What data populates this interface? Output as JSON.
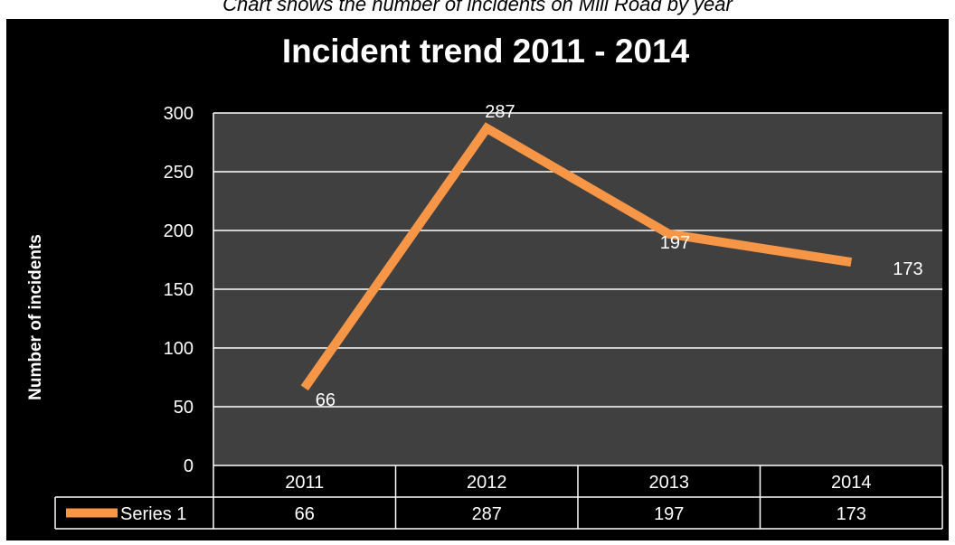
{
  "caption": "Chart shows the number of incidents on Mill Road by year",
  "colors": {
    "background": "#000000",
    "plot_area": "#404040",
    "gridline": "#ffffff",
    "series_line": "#f79646",
    "text": "#ffffff"
  },
  "chart_data": {
    "type": "line",
    "title": "Incident trend 2011 - 2014",
    "xlabel": "",
    "ylabel": "Number of incidents",
    "categories": [
      "2011",
      "2012",
      "2013",
      "2014"
    ],
    "series": [
      {
        "name": "Series 1",
        "values": [
          66,
          287,
          197,
          173
        ],
        "color": "#f79646"
      }
    ],
    "ylim": [
      0,
      300
    ],
    "yticks": [
      0,
      50,
      100,
      150,
      200,
      250,
      300
    ],
    "grid": true,
    "data_labels": true,
    "data_table": true,
    "legend": "data-table"
  }
}
